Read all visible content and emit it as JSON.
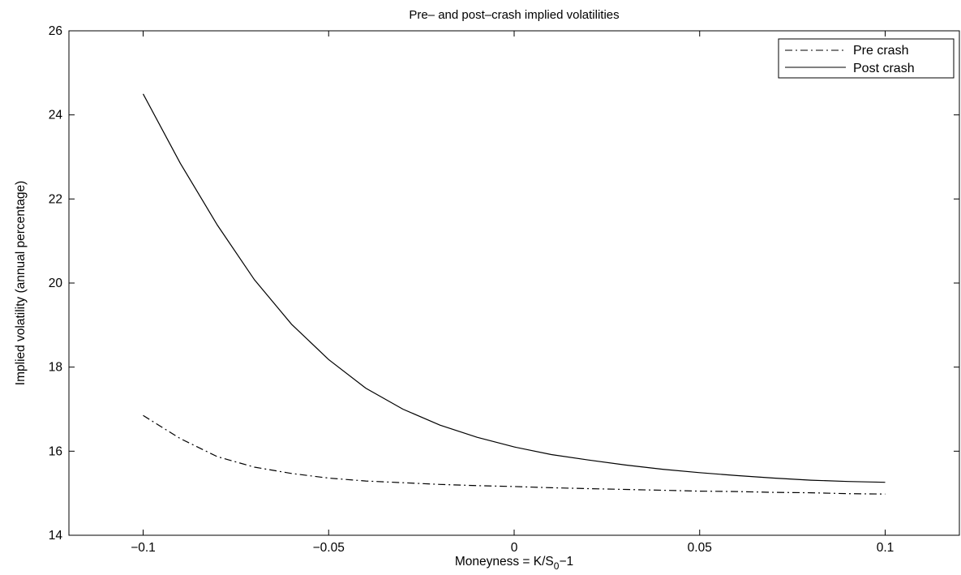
{
  "chart_data": {
    "type": "line",
    "title": "Pre– and post–crash implied volatilities",
    "xlabel": "Moneyness = K/S0−1",
    "xlabel_parts": {
      "main": "Moneyness = K/S",
      "sub": "0",
      "tail": "−1"
    },
    "ylabel": "Implied volatility (annual percentage)",
    "xlim": [
      -0.12,
      0.12
    ],
    "ylim": [
      14,
      26
    ],
    "x_ticks": [
      -0.1,
      -0.05,
      0,
      0.05,
      0.1
    ],
    "x_tick_labels": [
      "−0.1",
      "−0.05",
      "0",
      "0.05",
      "0.1"
    ],
    "y_ticks": [
      14,
      16,
      18,
      20,
      22,
      24,
      26
    ],
    "y_tick_labels": [
      "14",
      "16",
      "18",
      "20",
      "22",
      "24",
      "26"
    ],
    "grid": false,
    "legend_position": "top-right",
    "x": [
      -0.1,
      -0.09,
      -0.08,
      -0.07,
      -0.06,
      -0.05,
      -0.04,
      -0.03,
      -0.02,
      -0.01,
      0,
      0.01,
      0.02,
      0.03,
      0.04,
      0.05,
      0.06,
      0.07,
      0.08,
      0.09,
      0.1
    ],
    "series": [
      {
        "name": "Pre crash",
        "style": "dashdot",
        "color": "#000000",
        "values": [
          16.85,
          16.3,
          15.87,
          15.62,
          15.47,
          15.36,
          15.29,
          15.25,
          15.21,
          15.18,
          15.16,
          15.13,
          15.11,
          15.09,
          15.07,
          15.05,
          15.04,
          15.02,
          15.01,
          14.99,
          14.98
        ]
      },
      {
        "name": "Post crash",
        "style": "solid",
        "color": "#000000",
        "values": [
          24.5,
          22.85,
          21.38,
          20.08,
          19.02,
          18.18,
          17.5,
          17.0,
          16.62,
          16.33,
          16.1,
          15.92,
          15.79,
          15.67,
          15.57,
          15.49,
          15.42,
          15.36,
          15.31,
          15.28,
          15.26
        ]
      }
    ]
  }
}
